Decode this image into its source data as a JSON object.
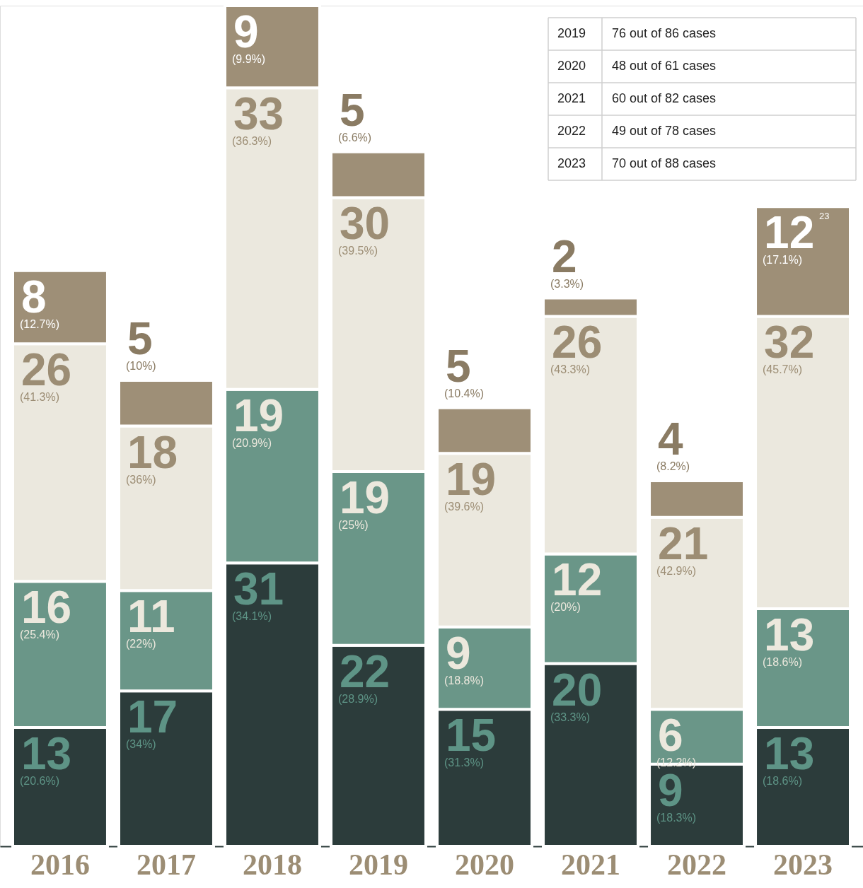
{
  "chart_data": {
    "type": "bar",
    "stacked": true,
    "grid": false,
    "tick_labels": "x",
    "data_labels": true,
    "categories": [
      "2016",
      "2017",
      "2018",
      "2019",
      "2020",
      "2021",
      "2022",
      "2023"
    ],
    "series": [
      {
        "color": "#2c3c3b",
        "values": [
          13,
          17,
          31,
          22,
          15,
          20,
          9,
          13
        ]
      },
      {
        "color": "#6a9688",
        "values": [
          16,
          11,
          19,
          19,
          9,
          12,
          6,
          13
        ]
      },
      {
        "color": "#ebe8de",
        "values": [
          26,
          18,
          33,
          30,
          19,
          26,
          21,
          32
        ]
      },
      {
        "color": "#9e8f77",
        "values": [
          8,
          5,
          9,
          5,
          5,
          2,
          4,
          12
        ]
      }
    ],
    "annotations": [
      "(20.6%)",
      "(25.4%)",
      "(41.3%)",
      "(12.7%)",
      "(34%)",
      "(22%)",
      "(36%)",
      "(10%)",
      "(34.1%)",
      "(20.9%)",
      "(36.3%)",
      "(9.9%)",
      "(28.9%)",
      "(25%)",
      "(39.5%)",
      "(6.6%)",
      "(31.3%)",
      "(18.8%)",
      "(39.6%)",
      "(10.4%)",
      "(33.3%)",
      "(20%)",
      "(43.3%)",
      "(3.3%)",
      "(18.3%)",
      "(12.2%)",
      "(42.9%)",
      "(8.2%)",
      "(18.6%)",
      "(18.6%)",
      "(45.7%)",
      "(17.1%)",
      "23",
      "2019",
      "76 out of 86 cases",
      "2020",
      "48 out of 61 cases",
      "2021",
      "60 out of 82 cases",
      "2022",
      "49 out of 78 cases",
      "2023",
      "70 out of 88 cases"
    ]
  }
}
